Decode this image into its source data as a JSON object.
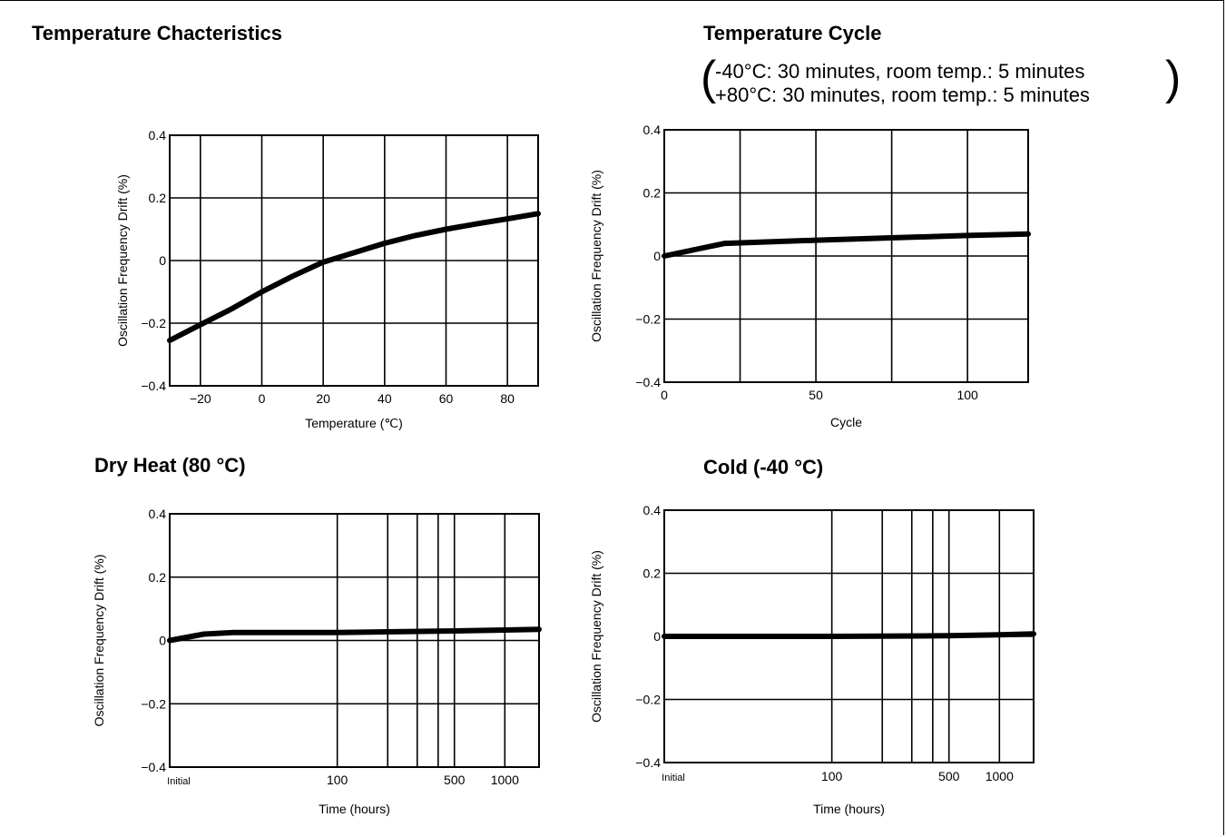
{
  "panels": {
    "tc": {
      "title": "Temperature Chacteristics"
    },
    "cyc": {
      "title": "Temperature Cycle",
      "conditions": [
        "-40°C: 30 minutes, room temp.: 5 minutes",
        "+80°C: 30 minutes, room temp.: 5 minutes"
      ]
    },
    "dry": {
      "title": "Dry Heat (80 °C)"
    },
    "cold": {
      "title": "Cold (-40 °C)"
    }
  },
  "chart_data": [
    {
      "id": "tc",
      "type": "line",
      "title": "Temperature Chacteristics",
      "xlabel": "Temperature (℃)",
      "ylabel": "Oscillation Frequency Drift (%)",
      "xlim": [
        -30,
        90
      ],
      "ylim": [
        -0.4,
        0.4
      ],
      "xticks": [
        {
          "v": -20,
          "label": "−20"
        },
        {
          "v": 0,
          "label": "0"
        },
        {
          "v": 20,
          "label": "20"
        },
        {
          "v": 40,
          "label": "40"
        },
        {
          "v": 60,
          "label": "60"
        },
        {
          "v": 80,
          "label": "80"
        }
      ],
      "yticks": [
        {
          "v": 0.4,
          "label": "0.4"
        },
        {
          "v": 0.2,
          "label": "0.2"
        },
        {
          "v": 0,
          "label": "0"
        },
        {
          "v": -0.2,
          "label": "−0.2"
        },
        {
          "v": -0.4,
          "label": "−0.4"
        }
      ],
      "grid": true,
      "series": [
        {
          "x": [
            -30,
            -20,
            -10,
            0,
            10,
            20,
            30,
            40,
            50,
            60,
            70,
            80,
            90
          ],
          "y": [
            -0.255,
            -0.205,
            -0.155,
            -0.1,
            -0.05,
            -0.005,
            0.025,
            0.055,
            0.08,
            0.1,
            0.117,
            0.133,
            0.15
          ]
        }
      ]
    },
    {
      "id": "cyc",
      "type": "line",
      "title": "Temperature Cycle",
      "xlabel": "Cycle",
      "ylabel": "Oscillation Frequency Drift (%)",
      "xlim": [
        0,
        120
      ],
      "ylim": [
        -0.4,
        0.4
      ],
      "xticks": [
        {
          "v": 0,
          "label": "0"
        },
        {
          "v": 50,
          "label": "50"
        },
        {
          "v": 100,
          "label": "100"
        }
      ],
      "xgrid": [
        25,
        50,
        75,
        100
      ],
      "yticks": [
        {
          "v": 0.4,
          "label": "0.4"
        },
        {
          "v": 0.2,
          "label": "0.2"
        },
        {
          "v": 0,
          "label": "0"
        },
        {
          "v": -0.2,
          "label": "−0.2"
        },
        {
          "v": -0.4,
          "label": "−0.4"
        }
      ],
      "grid": true,
      "series": [
        {
          "x": [
            0,
            10,
            20,
            50,
            100,
            120
          ],
          "y": [
            0,
            0.02,
            0.04,
            0.05,
            0.065,
            0.07
          ]
        }
      ]
    },
    {
      "id": "dry",
      "type": "line",
      "title": "Dry Heat (80 °C)",
      "xlabel": "Time (hours)",
      "ylabel": "Oscillation Frequency Drift (%)",
      "xscale": "log",
      "xlim": [
        10,
        1600
      ],
      "ylim": [
        -0.4,
        0.4
      ],
      "xticks": [
        {
          "v": 10,
          "label": "Initial"
        },
        {
          "v": 100,
          "label": "100"
        },
        {
          "v": 500,
          "label": "500"
        },
        {
          "v": 1000,
          "label": "1000"
        }
      ],
      "xgrid": [
        100,
        200,
        300,
        400,
        500,
        1000
      ],
      "yticks": [
        {
          "v": 0.4,
          "label": "0.4"
        },
        {
          "v": 0.2,
          "label": "0.2"
        },
        {
          "v": 0,
          "label": "0"
        },
        {
          "v": -0.2,
          "label": "−0.2"
        },
        {
          "v": -0.4,
          "label": "−0.4"
        }
      ],
      "grid": true,
      "series": [
        {
          "x": [
            10,
            16,
            24,
            100,
            500,
            1000,
            1600
          ],
          "y": [
            0,
            0.02,
            0.025,
            0.025,
            0.03,
            0.033,
            0.035
          ]
        }
      ]
    },
    {
      "id": "cold",
      "type": "line",
      "title": "Cold (-40 °C)",
      "xlabel": "Time (hours)",
      "ylabel": "Oscillation Frequency Drift (%)",
      "xscale": "log",
      "xlim": [
        10,
        1600
      ],
      "ylim": [
        -0.4,
        0.4
      ],
      "xticks": [
        {
          "v": 10,
          "label": "Initial"
        },
        {
          "v": 100,
          "label": "100"
        },
        {
          "v": 500,
          "label": "500"
        },
        {
          "v": 1000,
          "label": "1000"
        }
      ],
      "xgrid": [
        100,
        200,
        300,
        400,
        500,
        1000
      ],
      "yticks": [
        {
          "v": 0.4,
          "label": "0.4"
        },
        {
          "v": 0.2,
          "label": "0.2"
        },
        {
          "v": 0,
          "label": "0"
        },
        {
          "v": -0.2,
          "label": "−0.2"
        },
        {
          "v": -0.4,
          "label": "−0.4"
        }
      ],
      "grid": true,
      "series": [
        {
          "x": [
            10,
            100,
            500,
            1000,
            1600
          ],
          "y": [
            0,
            0,
            0.002,
            0.005,
            0.008
          ]
        }
      ]
    }
  ]
}
